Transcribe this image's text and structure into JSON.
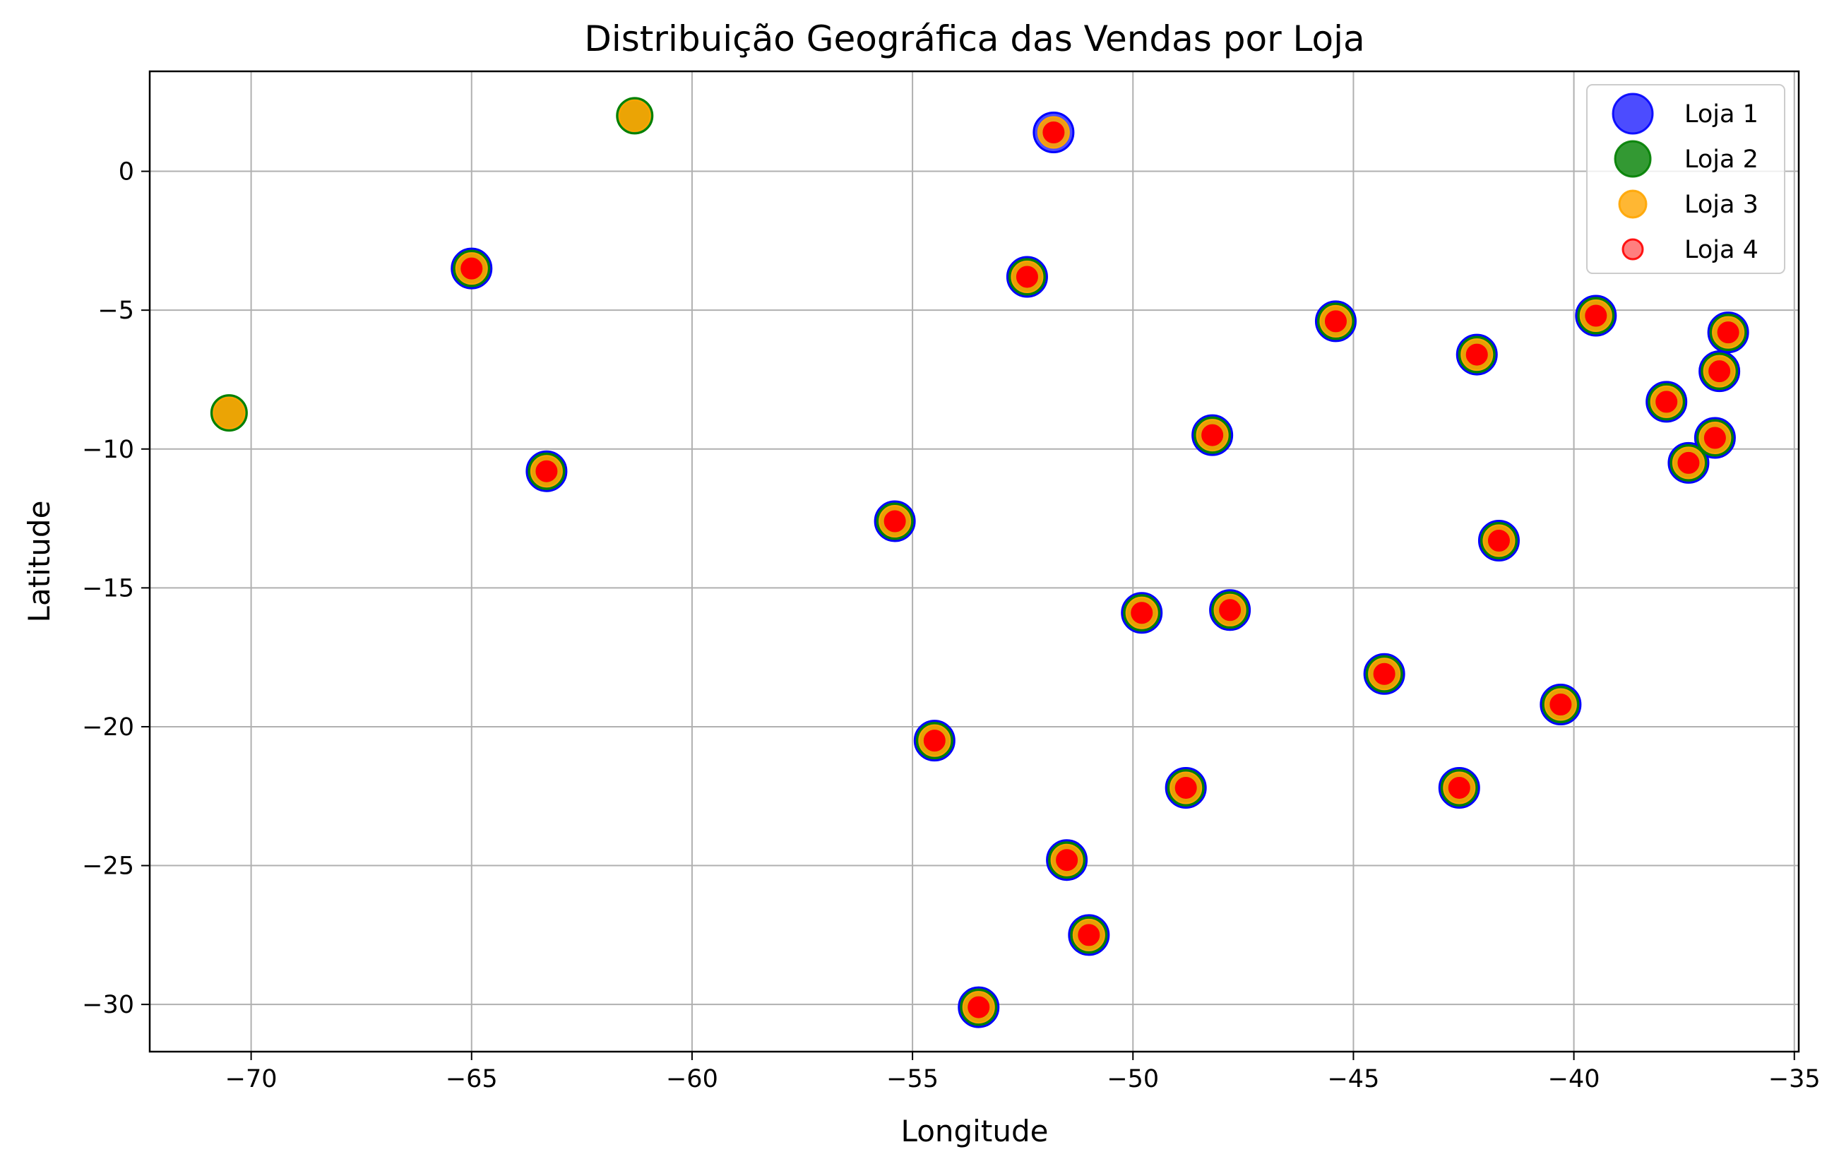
{
  "chart_data": {
    "type": "scatter",
    "title": "Distribuição Geográfica das Vendas por Loja",
    "xlabel": "Longitude",
    "ylabel": "Latitude",
    "xlim": [
      -72.3,
      -34.9
    ],
    "ylim": [
      -31.7,
      3.6
    ],
    "xticks": [
      -70,
      -65,
      -60,
      -55,
      -50,
      -45,
      -40,
      -35
    ],
    "yticks": [
      0,
      -5,
      -10,
      -15,
      -20,
      -25,
      -30
    ],
    "xtick_labels": [
      "−70",
      "−65",
      "−60",
      "−55",
      "−50",
      "−45",
      "−40",
      "−35"
    ],
    "ytick_labels": [
      "0",
      "−5",
      "−10",
      "−15",
      "−20",
      "−25",
      "−30"
    ],
    "grid": true,
    "legend_position": "top-right",
    "series": [
      {
        "name": "Loja 1",
        "color": "#0000ff",
        "x": [
          -65.0,
          -63.3,
          -55.4,
          -54.5,
          -53.5,
          -52.4,
          -51.5,
          -51.0,
          -51.8,
          -49.8,
          -48.8,
          -48.2,
          -47.8,
          -45.4,
          -44.3,
          -42.6,
          -42.2,
          -41.7,
          -40.3,
          -39.5,
          -37.9,
          -37.4,
          -36.8,
          -36.7,
          -36.5
        ],
        "y": [
          -3.5,
          -10.8,
          -12.6,
          -20.5,
          -30.1,
          -3.8,
          -24.8,
          -27.5,
          1.4,
          -15.9,
          -22.2,
          -9.5,
          -15.8,
          -5.4,
          -18.1,
          -22.2,
          -6.6,
          -13.3,
          -19.2,
          -5.2,
          -8.3,
          -10.5,
          -9.6,
          -7.2,
          -5.8
        ]
      },
      {
        "name": "Loja 2",
        "color": "#008000",
        "x": [
          -70.5,
          -61.3,
          -65.0,
          -63.3,
          -55.4,
          -54.5,
          -53.5,
          -52.4,
          -51.5,
          -51.0,
          -49.8,
          -48.8,
          -48.2,
          -47.8,
          -45.4,
          -44.3,
          -42.6,
          -42.2,
          -41.7,
          -40.3,
          -39.5,
          -37.9,
          -37.4,
          -36.8,
          -36.7,
          -36.5
        ],
        "y": [
          -8.7,
          2.0,
          -3.5,
          -10.8,
          -12.6,
          -20.5,
          -30.1,
          -3.8,
          -24.8,
          -27.5,
          -15.9,
          -22.2,
          -9.5,
          -15.8,
          -5.4,
          -18.1,
          -22.2,
          -6.6,
          -13.3,
          -19.2,
          -5.2,
          -8.3,
          -10.5,
          -9.6,
          -7.2,
          -5.8
        ]
      },
      {
        "name": "Loja 3",
        "color": "#ffa500",
        "x": [
          -70.5,
          -61.3,
          -65.0,
          -63.3,
          -55.4,
          -54.5,
          -53.5,
          -52.4,
          -51.5,
          -51.0,
          -51.8,
          -49.8,
          -48.8,
          -48.2,
          -47.8,
          -45.4,
          -44.3,
          -42.6,
          -42.2,
          -41.7,
          -40.3,
          -39.5,
          -37.9,
          -37.4,
          -36.8,
          -36.7,
          -36.5
        ],
        "y": [
          -8.7,
          2.0,
          -3.5,
          -10.8,
          -12.6,
          -20.5,
          -30.1,
          -3.8,
          -24.8,
          -27.5,
          1.4,
          -15.9,
          -22.2,
          -9.5,
          -15.8,
          -5.4,
          -18.1,
          -22.2,
          -6.6,
          -13.3,
          -19.2,
          -5.2,
          -8.3,
          -10.5,
          -9.6,
          -7.2,
          -5.8
        ]
      },
      {
        "name": "Loja 4",
        "color": "#ff0000",
        "x": [
          -65.0,
          -63.3,
          -55.4,
          -54.5,
          -53.5,
          -52.4,
          -51.5,
          -51.0,
          -51.8,
          -49.8,
          -48.8,
          -48.2,
          -47.8,
          -45.4,
          -44.3,
          -42.6,
          -42.2,
          -41.7,
          -40.3,
          -39.5,
          -37.9,
          -37.4,
          -36.8,
          -36.7,
          -36.5
        ],
        "y": [
          -3.5,
          -10.8,
          -12.6,
          -20.5,
          -30.1,
          -3.8,
          -24.8,
          -27.5,
          1.4,
          -15.9,
          -22.2,
          -9.5,
          -15.8,
          -5.4,
          -18.1,
          -22.2,
          -6.6,
          -13.3,
          -19.2,
          -5.2,
          -8.3,
          -10.5,
          -9.6,
          -7.2,
          -5.8
        ]
      }
    ]
  }
}
